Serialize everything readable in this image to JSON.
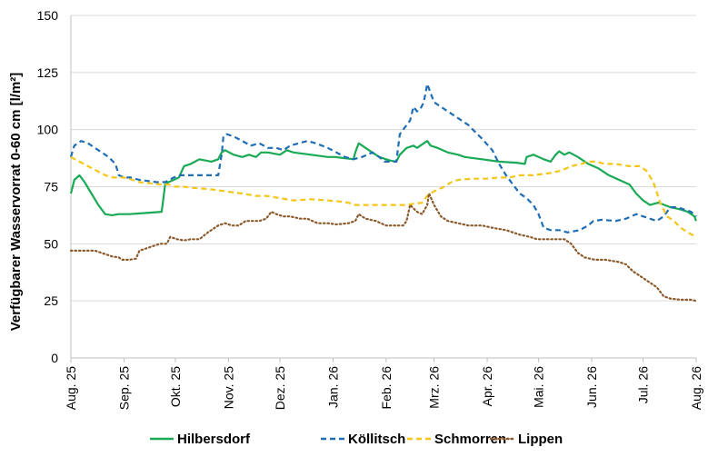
{
  "chart_data": {
    "type": "line",
    "title": "",
    "ylabel": "Verfügbarer Wasservorrat 0-60 cm [l/m²]",
    "xlabel": "",
    "ylim": [
      0,
      150
    ],
    "yticks": [
      0,
      25,
      50,
      75,
      100,
      125,
      150
    ],
    "grid": "horizontal",
    "legend": "bottom",
    "x_tick_labels": [
      "Aug. 25",
      "Sep. 25",
      "Okt. 25",
      "Nov. 25",
      "Dez. 25",
      "Jan. 26",
      "Feb. 26",
      "Mrz. 26",
      "Apr. 26",
      "Mai. 26",
      "Jun. 26",
      "Jul. 26",
      "Aug. 26"
    ],
    "x_tick_days": [
      0,
      31,
      61,
      92,
      122,
      153,
      184,
      212,
      243,
      273,
      304,
      334,
      365
    ],
    "x_unit": "days since Aug. 25",
    "series": [
      {
        "name": "Hilbersdorf",
        "color": "#1aaa55",
        "dash": "solid",
        "points": [
          [
            0,
            72
          ],
          [
            2,
            78
          ],
          [
            5,
            80
          ],
          [
            8,
            77
          ],
          [
            12,
            72
          ],
          [
            16,
            67
          ],
          [
            20,
            63
          ],
          [
            24,
            62.5
          ],
          [
            28,
            63
          ],
          [
            34,
            63
          ],
          [
            44,
            63.5
          ],
          [
            53,
            64
          ],
          [
            55,
            76
          ],
          [
            57,
            77
          ],
          [
            60,
            78
          ],
          [
            63,
            79
          ],
          [
            66,
            84
          ],
          [
            70,
            85
          ],
          [
            75,
            87
          ],
          [
            82,
            86
          ],
          [
            86,
            87
          ],
          [
            88,
            90
          ],
          [
            90,
            91
          ],
          [
            95,
            89
          ],
          [
            100,
            88
          ],
          [
            104,
            89
          ],
          [
            108,
            88
          ],
          [
            111,
            90
          ],
          [
            115,
            90
          ],
          [
            122,
            89
          ],
          [
            126,
            91
          ],
          [
            130,
            90
          ],
          [
            140,
            89
          ],
          [
            150,
            88
          ],
          [
            154,
            88
          ],
          [
            160,
            87.5
          ],
          [
            165,
            87
          ],
          [
            166,
            90
          ],
          [
            168,
            94
          ],
          [
            172,
            92
          ],
          [
            176,
            90
          ],
          [
            180,
            88
          ],
          [
            184,
            87
          ],
          [
            186,
            86.5
          ],
          [
            190,
            86
          ],
          [
            192,
            89
          ],
          [
            196,
            92
          ],
          [
            200,
            93
          ],
          [
            202,
            92
          ],
          [
            206,
            94
          ],
          [
            208,
            95
          ],
          [
            210,
            93
          ],
          [
            214,
            92
          ],
          [
            220,
            90
          ],
          [
            226,
            89
          ],
          [
            230,
            88
          ],
          [
            240,
            87
          ],
          [
            250,
            86
          ],
          [
            260,
            85.5
          ],
          [
            265,
            85
          ],
          [
            266,
            88
          ],
          [
            270,
            89
          ],
          [
            276,
            87
          ],
          [
            280,
            86
          ],
          [
            283,
            89
          ],
          [
            285,
            90.5
          ],
          [
            288,
            89
          ],
          [
            291,
            90
          ],
          [
            296,
            88
          ],
          [
            302,
            85
          ],
          [
            308,
            83
          ],
          [
            314,
            80
          ],
          [
            320,
            78
          ],
          [
            326,
            76
          ],
          [
            330,
            72
          ],
          [
            334,
            69
          ],
          [
            338,
            67
          ],
          [
            343,
            68
          ],
          [
            350,
            66
          ],
          [
            356,
            65
          ],
          [
            360,
            64
          ],
          [
            364,
            62
          ],
          [
            365,
            60
          ]
        ]
      },
      {
        "name": "Köllitsch",
        "color": "#1f6eb5",
        "dash": "dashed",
        "points": [
          [
            0,
            88
          ],
          [
            2,
            93
          ],
          [
            6,
            95
          ],
          [
            10,
            94
          ],
          [
            16,
            91
          ],
          [
            22,
            88
          ],
          [
            26,
            85
          ],
          [
            28,
            80
          ],
          [
            31,
            79
          ],
          [
            35,
            79
          ],
          [
            40,
            78
          ],
          [
            45,
            77.5
          ],
          [
            50,
            77
          ],
          [
            55,
            77
          ],
          [
            60,
            79
          ],
          [
            64,
            80
          ],
          [
            70,
            80
          ],
          [
            80,
            80
          ],
          [
            86,
            80
          ],
          [
            88,
            89
          ],
          [
            89,
            97
          ],
          [
            91,
            98
          ],
          [
            95,
            97
          ],
          [
            100,
            95
          ],
          [
            105,
            93
          ],
          [
            110,
            94
          ],
          [
            115,
            92
          ],
          [
            120,
            92
          ],
          [
            124,
            91
          ],
          [
            128,
            93
          ],
          [
            133,
            94
          ],
          [
            138,
            95
          ],
          [
            143,
            94
          ],
          [
            150,
            92
          ],
          [
            160,
            88
          ],
          [
            165,
            87
          ],
          [
            170,
            88
          ],
          [
            176,
            90
          ],
          [
            180,
            88
          ],
          [
            183,
            86
          ],
          [
            186,
            86
          ],
          [
            188,
            86
          ],
          [
            190,
            86
          ],
          [
            192,
            98
          ],
          [
            194,
            100
          ],
          [
            196,
            102
          ],
          [
            198,
            104
          ],
          [
            200,
            110
          ],
          [
            202,
            108
          ],
          [
            204,
            109
          ],
          [
            206,
            112
          ],
          [
            208,
            120
          ],
          [
            210,
            116
          ],
          [
            212,
            112
          ],
          [
            216,
            110
          ],
          [
            222,
            107
          ],
          [
            228,
            104
          ],
          [
            232,
            102
          ],
          [
            236,
            99
          ],
          [
            240,
            96
          ],
          [
            246,
            91
          ],
          [
            250,
            85
          ],
          [
            254,
            80
          ],
          [
            258,
            76
          ],
          [
            262,
            72
          ],
          [
            266,
            70
          ],
          [
            270,
            67
          ],
          [
            273,
            63
          ],
          [
            276,
            57
          ],
          [
            280,
            56
          ],
          [
            285,
            56
          ],
          [
            290,
            55
          ],
          [
            297,
            56
          ],
          [
            302,
            58
          ],
          [
            305,
            60
          ],
          [
            310,
            60.5
          ],
          [
            318,
            60
          ],
          [
            324,
            61
          ],
          [
            330,
            63
          ],
          [
            334,
            62
          ],
          [
            338,
            61
          ],
          [
            342,
            60
          ],
          [
            346,
            62
          ],
          [
            350,
            66
          ],
          [
            354,
            66
          ],
          [
            358,
            65
          ],
          [
            362,
            64
          ],
          [
            365,
            62
          ]
        ]
      },
      {
        "name": "Schmorren",
        "color": "#f5c518",
        "dash": "dashed",
        "points": [
          [
            0,
            88
          ],
          [
            5,
            86
          ],
          [
            10,
            84
          ],
          [
            15,
            82
          ],
          [
            20,
            80
          ],
          [
            25,
            79
          ],
          [
            31,
            79
          ],
          [
            36,
            78
          ],
          [
            40,
            77
          ],
          [
            46,
            76.5
          ],
          [
            52,
            76
          ],
          [
            57,
            76
          ],
          [
            61,
            75
          ],
          [
            66,
            75
          ],
          [
            71,
            74.5
          ],
          [
            80,
            74
          ],
          [
            90,
            73
          ],
          [
            100,
            72
          ],
          [
            108,
            71
          ],
          [
            114,
            71
          ],
          [
            122,
            70
          ],
          [
            130,
            69
          ],
          [
            140,
            69.5
          ],
          [
            150,
            69
          ],
          [
            157,
            68.5
          ],
          [
            162,
            68
          ],
          [
            166,
            67
          ],
          [
            175,
            67
          ],
          [
            184,
            67
          ],
          [
            195,
            67
          ],
          [
            205,
            68
          ],
          [
            208,
            71
          ],
          [
            212,
            73
          ],
          [
            218,
            75
          ],
          [
            222,
            77
          ],
          [
            226,
            78
          ],
          [
            234,
            78.5
          ],
          [
            242,
            78.5
          ],
          [
            250,
            79
          ],
          [
            256,
            79
          ],
          [
            262,
            80
          ],
          [
            270,
            80
          ],
          [
            280,
            81
          ],
          [
            286,
            82
          ],
          [
            292,
            84
          ],
          [
            298,
            85
          ],
          [
            302,
            86
          ],
          [
            306,
            86
          ],
          [
            312,
            85
          ],
          [
            318,
            85
          ],
          [
            326,
            84
          ],
          [
            332,
            84
          ],
          [
            336,
            82
          ],
          [
            340,
            77
          ],
          [
            344,
            68
          ],
          [
            348,
            62
          ],
          [
            352,
            60
          ],
          [
            356,
            57
          ],
          [
            360,
            55
          ],
          [
            365,
            53
          ]
        ]
      },
      {
        "name": "Lippen",
        "color": "#8b5a2b",
        "dash": "dotted",
        "points": [
          [
            0,
            47
          ],
          [
            5,
            47
          ],
          [
            10,
            47
          ],
          [
            14,
            47
          ],
          [
            18,
            46
          ],
          [
            24,
            44.5
          ],
          [
            28,
            44
          ],
          [
            30,
            43
          ],
          [
            34,
            43
          ],
          [
            38,
            43.5
          ],
          [
            40,
            47
          ],
          [
            44,
            48
          ],
          [
            48,
            49
          ],
          [
            52,
            50
          ],
          [
            56,
            50
          ],
          [
            58,
            53
          ],
          [
            62,
            52
          ],
          [
            66,
            51.5
          ],
          [
            70,
            52
          ],
          [
            75,
            52
          ],
          [
            80,
            55
          ],
          [
            84,
            57
          ],
          [
            86,
            58
          ],
          [
            90,
            59
          ],
          [
            94,
            58
          ],
          [
            98,
            58
          ],
          [
            102,
            60
          ],
          [
            106,
            60
          ],
          [
            110,
            60
          ],
          [
            114,
            61
          ],
          [
            117,
            64
          ],
          [
            120,
            63
          ],
          [
            124,
            62
          ],
          [
            128,
            62
          ],
          [
            134,
            61
          ],
          [
            138,
            61
          ],
          [
            144,
            59
          ],
          [
            150,
            59
          ],
          [
            155,
            58.5
          ],
          [
            162,
            59
          ],
          [
            166,
            60
          ],
          [
            168,
            63
          ],
          [
            172,
            61
          ],
          [
            178,
            60
          ],
          [
            184,
            58
          ],
          [
            188,
            58
          ],
          [
            194,
            58
          ],
          [
            196,
            60
          ],
          [
            198,
            67
          ],
          [
            202,
            64
          ],
          [
            205,
            63
          ],
          [
            208,
            67
          ],
          [
            209,
            72
          ],
          [
            212,
            67
          ],
          [
            216,
            62
          ],
          [
            220,
            60
          ],
          [
            226,
            59
          ],
          [
            232,
            58
          ],
          [
            240,
            58
          ],
          [
            246,
            57
          ],
          [
            254,
            56
          ],
          [
            262,
            54
          ],
          [
            268,
            53
          ],
          [
            272,
            52
          ],
          [
            278,
            52
          ],
          [
            288,
            52
          ],
          [
            292,
            50
          ],
          [
            294,
            48
          ],
          [
            296,
            46
          ],
          [
            300,
            44
          ],
          [
            306,
            43
          ],
          [
            312,
            43
          ],
          [
            320,
            42
          ],
          [
            324,
            41
          ],
          [
            328,
            38
          ],
          [
            334,
            35
          ],
          [
            338,
            33
          ],
          [
            342,
            31
          ],
          [
            346,
            27
          ],
          [
            350,
            26
          ],
          [
            356,
            25.5
          ],
          [
            362,
            25.5
          ],
          [
            365,
            25
          ]
        ]
      }
    ]
  }
}
